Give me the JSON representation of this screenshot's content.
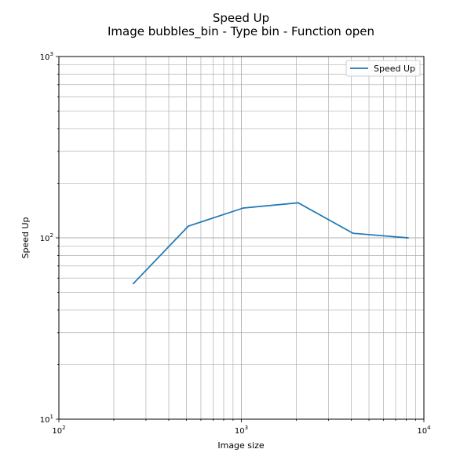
{
  "chart_data": {
    "type": "line",
    "title": "Speed Up",
    "subtitle": "Image bubbles_bin - Type bin - Function open",
    "xlabel": "Image size",
    "ylabel": "Speed Up",
    "x_scale": "log",
    "y_scale": "log",
    "xlim": [
      100,
      10000
    ],
    "ylim": [
      10,
      1000
    ],
    "grid": "major and minor",
    "legend_position": "top-right",
    "x_tick_labels": [
      {
        "base": "10",
        "exp": "2"
      },
      {
        "base": "10",
        "exp": "3"
      },
      {
        "base": "10",
        "exp": "4"
      }
    ],
    "y_tick_labels": [
      {
        "base": "10",
        "exp": "1"
      },
      {
        "base": "10",
        "exp": "2"
      },
      {
        "base": "10",
        "exp": "3"
      }
    ],
    "series": [
      {
        "name": "Speed Up",
        "color": "#1f77b4",
        "x": [
          256,
          512,
          1024,
          2048,
          4096,
          8192
        ],
        "y": [
          56,
          116,
          146,
          156,
          106,
          100
        ]
      }
    ]
  }
}
